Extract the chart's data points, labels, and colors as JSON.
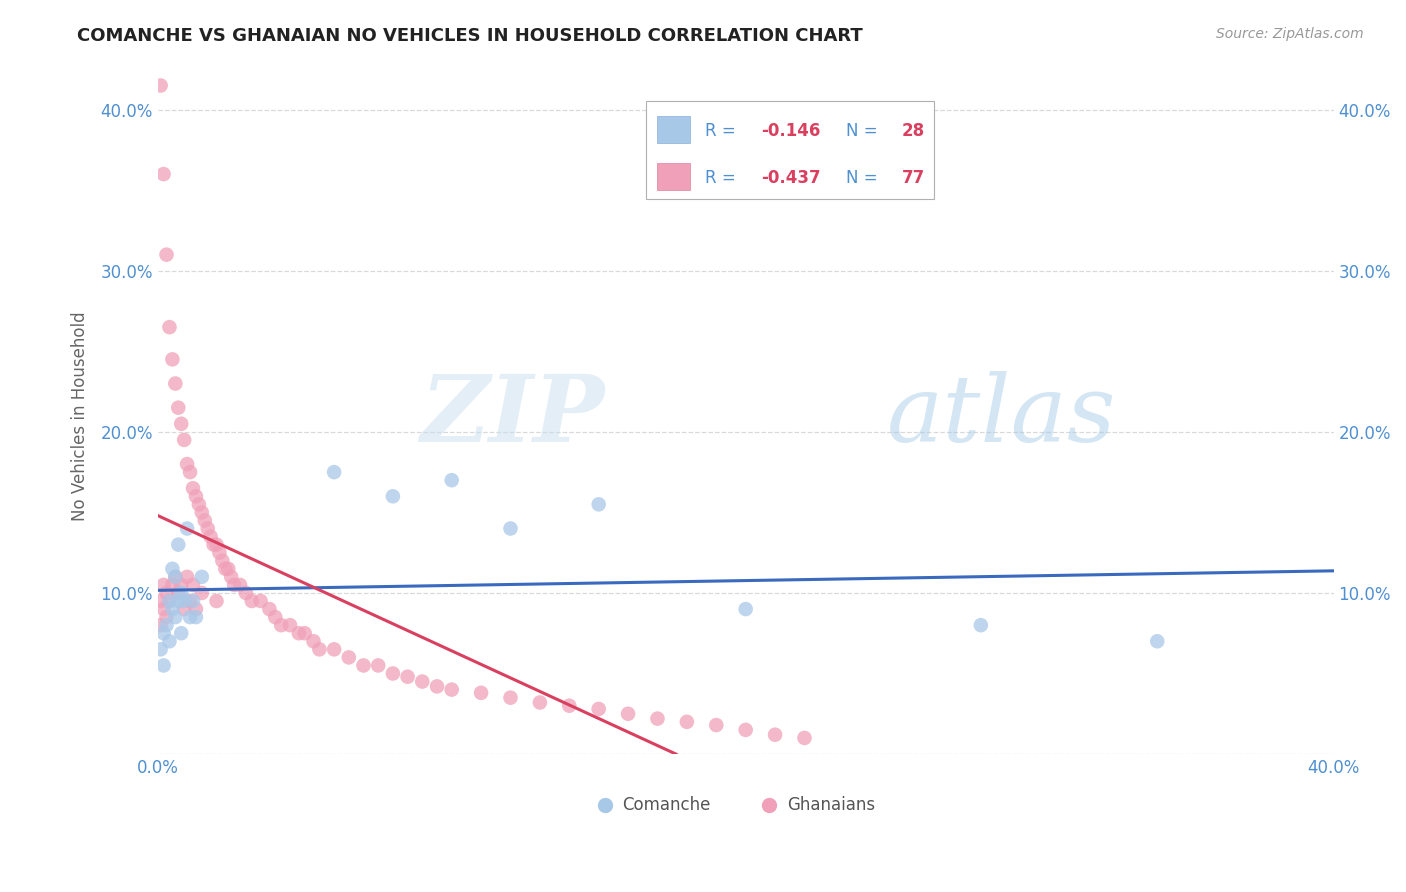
{
  "title": "COMANCHE VS GHANAIAN NO VEHICLES IN HOUSEHOLD CORRELATION CHART",
  "source": "Source: ZipAtlas.com",
  "ylabel": "No Vehicles in Household",
  "xlim": [
    0.0,
    0.4
  ],
  "ylim": [
    0.0,
    0.42
  ],
  "comanche_color": "#a8c8e8",
  "ghanaian_color": "#f0a0b8",
  "comanche_line_color": "#3a6abf",
  "ghanaian_line_color": "#d94060",
  "legend_R_comanche": "-0.146",
  "legend_N_comanche": "28",
  "legend_R_ghanaian": "-0.437",
  "legend_N_ghanaian": "77",
  "watermark_zip": "ZIP",
  "watermark_atlas": "atlas",
  "comanche_points_x": [
    0.001,
    0.002,
    0.002,
    0.003,
    0.004,
    0.004,
    0.005,
    0.005,
    0.006,
    0.006,
    0.007,
    0.007,
    0.008,
    0.008,
    0.009,
    0.01,
    0.011,
    0.012,
    0.013,
    0.015,
    0.06,
    0.08,
    0.1,
    0.12,
    0.15,
    0.2,
    0.28,
    0.34
  ],
  "comanche_points_y": [
    0.065,
    0.055,
    0.075,
    0.08,
    0.07,
    0.095,
    0.09,
    0.115,
    0.085,
    0.11,
    0.095,
    0.13,
    0.075,
    0.1,
    0.095,
    0.14,
    0.085,
    0.095,
    0.085,
    0.11,
    0.175,
    0.16,
    0.17,
    0.14,
    0.155,
    0.09,
    0.08,
    0.07
  ],
  "ghanaian_points_x": [
    0.001,
    0.001,
    0.001,
    0.002,
    0.002,
    0.002,
    0.003,
    0.003,
    0.003,
    0.004,
    0.004,
    0.005,
    0.005,
    0.006,
    0.006,
    0.007,
    0.007,
    0.008,
    0.008,
    0.009,
    0.009,
    0.01,
    0.01,
    0.011,
    0.011,
    0.012,
    0.012,
    0.013,
    0.013,
    0.014,
    0.015,
    0.015,
    0.016,
    0.017,
    0.018,
    0.019,
    0.02,
    0.02,
    0.021,
    0.022,
    0.023,
    0.024,
    0.025,
    0.026,
    0.028,
    0.03,
    0.032,
    0.035,
    0.038,
    0.04,
    0.042,
    0.045,
    0.048,
    0.05,
    0.053,
    0.055,
    0.06,
    0.065,
    0.07,
    0.075,
    0.08,
    0.085,
    0.09,
    0.095,
    0.1,
    0.11,
    0.12,
    0.13,
    0.14,
    0.15,
    0.16,
    0.17,
    0.18,
    0.19,
    0.2,
    0.21,
    0.22
  ],
  "ghanaian_points_y": [
    0.415,
    0.095,
    0.08,
    0.36,
    0.105,
    0.09,
    0.31,
    0.1,
    0.085,
    0.265,
    0.095,
    0.245,
    0.105,
    0.23,
    0.11,
    0.215,
    0.1,
    0.205,
    0.105,
    0.195,
    0.09,
    0.18,
    0.11,
    0.175,
    0.095,
    0.165,
    0.105,
    0.16,
    0.09,
    0.155,
    0.15,
    0.1,
    0.145,
    0.14,
    0.135,
    0.13,
    0.13,
    0.095,
    0.125,
    0.12,
    0.115,
    0.115,
    0.11,
    0.105,
    0.105,
    0.1,
    0.095,
    0.095,
    0.09,
    0.085,
    0.08,
    0.08,
    0.075,
    0.075,
    0.07,
    0.065,
    0.065,
    0.06,
    0.055,
    0.055,
    0.05,
    0.048,
    0.045,
    0.042,
    0.04,
    0.038,
    0.035,
    0.032,
    0.03,
    0.028,
    0.025,
    0.022,
    0.02,
    0.018,
    0.015,
    0.012,
    0.01
  ],
  "bg_color": "#ffffff",
  "grid_color": "#d0d0d0",
  "tick_color": "#5090d0",
  "label_color": "#666666"
}
